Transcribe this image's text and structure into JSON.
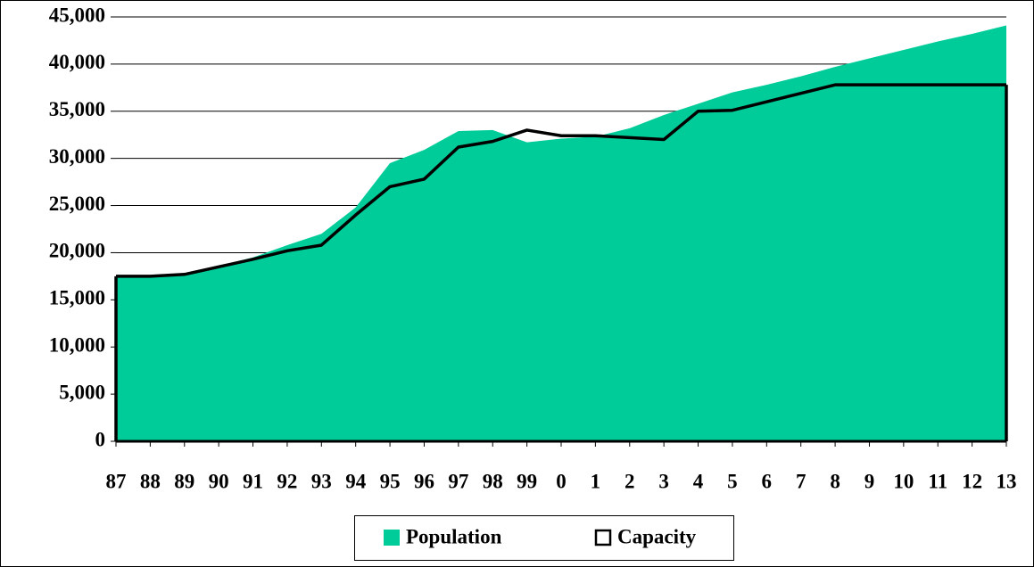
{
  "chart_data": {
    "type": "area-line",
    "categories": [
      "87",
      "88",
      "89",
      "90",
      "91",
      "92",
      "93",
      "94",
      "95",
      "96",
      "97",
      "98",
      "99",
      "0",
      "1",
      "2",
      "3",
      "4",
      "5",
      "6",
      "7",
      "8",
      "9",
      "10",
      "11",
      "12",
      "13"
    ],
    "series": [
      {
        "name": "Population",
        "type": "area",
        "color": "#00cc99",
        "values": [
          17400,
          17500,
          17800,
          18600,
          19500,
          20800,
          22000,
          24800,
          29500,
          30900,
          32900,
          33000,
          31700,
          32100,
          32300,
          33200,
          34600,
          35800,
          37000,
          37800,
          38700,
          39700,
          40600,
          41500,
          42400,
          43200,
          44100
        ]
      },
      {
        "name": "Capacity",
        "type": "line",
        "color": "#000000",
        "values": [
          17500,
          17500,
          17700,
          18500,
          19300,
          20200,
          20800,
          24000,
          27000,
          27800,
          31200,
          31800,
          33000,
          32400,
          32400,
          32200,
          32000,
          35000,
          35100,
          36000,
          36900,
          37800,
          37800,
          37800,
          37800,
          37800,
          37800
        ]
      }
    ],
    "ylim": [
      0,
      45000
    ],
    "yticks": [
      0,
      {
        "value": 5000,
        "label": "5,000"
      },
      {
        "value": 10000,
        "label": "10,000"
      },
      {
        "value": 15000,
        "label": "15,000"
      },
      {
        "value": 20000,
        "label": "20,000"
      },
      {
        "value": 25000,
        "label": "25,000"
      },
      {
        "value": 30000,
        "label": "30,000"
      },
      {
        "value": 35000,
        "label": "35,000"
      },
      {
        "value": 40000,
        "label": "40,000"
      },
      {
        "value": 45000,
        "label": "45,000"
      }
    ],
    "grid": true,
    "legend": "bottom"
  }
}
